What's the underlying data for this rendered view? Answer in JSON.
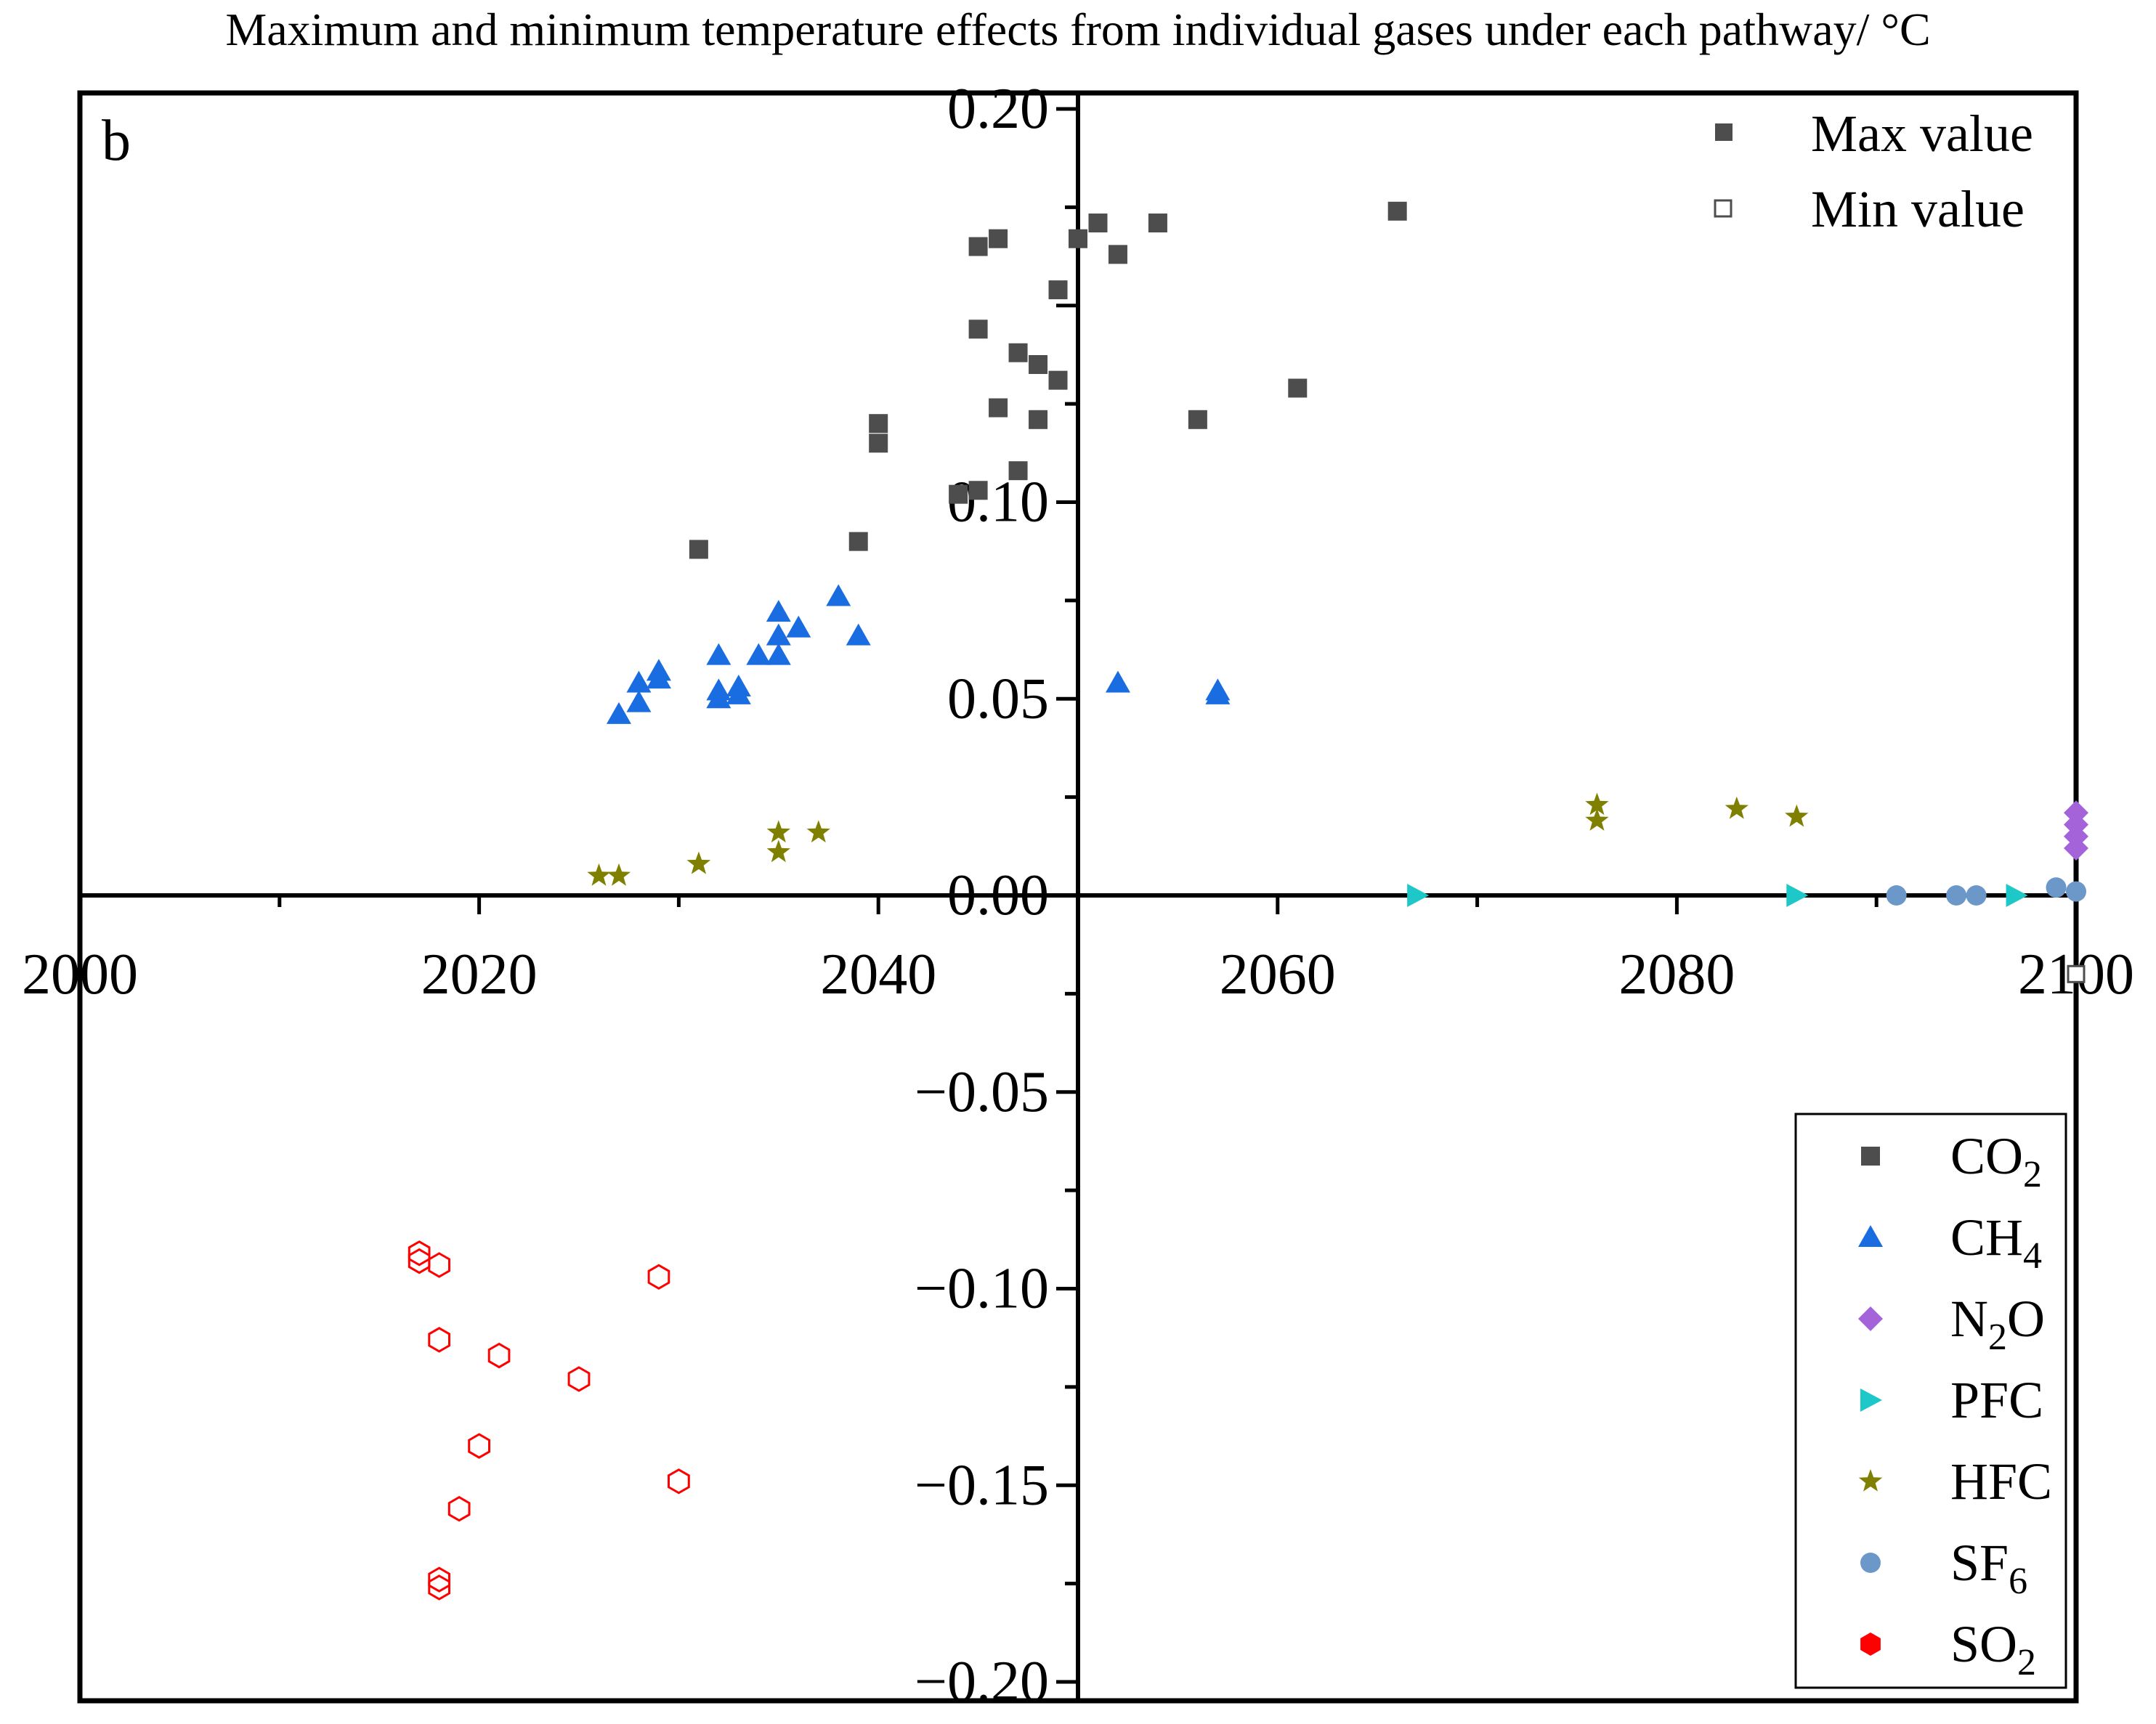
{
  "chart_data": {
    "type": "scatter",
    "title": "Maximum and minimum temperature effects from individual gases under each pathway/ °C",
    "panel_label": "b",
    "xlabel": "",
    "ylabel": "",
    "xlim": [
      2000,
      2100
    ],
    "ylim": [
      -0.2,
      0.2
    ],
    "x_ticks": [
      2000,
      2020,
      2040,
      2060,
      2080,
      2100
    ],
    "x_tick_labels": [
      "2000",
      "2020",
      "2040",
      "2060",
      "2080",
      "2100"
    ],
    "y_ticks": [
      0.2,
      0.1,
      0.05,
      0.0,
      -0.05,
      -0.1,
      -0.15,
      -0.2
    ],
    "y_tick_labels": [
      "0.20",
      "0.10",
      "0.05",
      "0.00",
      "−0.05",
      "−0.10",
      "−0.15",
      "−0.20"
    ],
    "legend_markers": {
      "position": "top-right",
      "entries": [
        {
          "label": "Max value",
          "style": "filled"
        },
        {
          "label": "Min value",
          "style": "open"
        }
      ]
    },
    "legend_gases": {
      "position": "bottom-right",
      "entries": [
        {
          "base": "CO",
          "sub": "2",
          "tail": "",
          "marker": "square",
          "color": "#4d4d4d"
        },
        {
          "base": "CH",
          "sub": "4",
          "tail": "",
          "marker": "triangle",
          "color": "#1a6de0"
        },
        {
          "base": "N",
          "sub": "2",
          "tail": "O",
          "marker": "diamond",
          "color": "#a463d8"
        },
        {
          "base": "PFC",
          "sub": "",
          "tail": "",
          "marker": "right-triangle",
          "color": "#1ec8c8"
        },
        {
          "base": "HFC",
          "sub": "",
          "tail": "",
          "marker": "star",
          "color": "#808000"
        },
        {
          "base": "SF",
          "sub": "6",
          "tail": "",
          "marker": "circle",
          "color": "#6b98c9"
        },
        {
          "base": "SO",
          "sub": "2",
          "tail": "",
          "marker": "hexagon",
          "color": "#ff0000"
        }
      ]
    },
    "series": [
      {
        "name": "CO2",
        "marker": "square",
        "color": "#4d4d4d",
        "style": "filled",
        "x": [
          2031,
          2039,
          2040,
          2040,
          2044,
          2045,
          2045,
          2045,
          2046,
          2046,
          2047,
          2047,
          2048,
          2048,
          2049,
          2049,
          2050,
          2051,
          2052,
          2054,
          2056,
          2061,
          2066
        ],
        "y": [
          0.088,
          0.09,
          0.115,
          0.12,
          0.102,
          0.103,
          0.144,
          0.165,
          0.124,
          0.167,
          0.108,
          0.138,
          0.121,
          0.135,
          0.131,
          0.154,
          0.167,
          0.171,
          0.163,
          0.171,
          0.121,
          0.129,
          0.174
        ]
      },
      {
        "name": "CH4",
        "marker": "triangle",
        "color": "#1a6de0",
        "style": "filled",
        "x": [
          2027,
          2028,
          2028,
          2029,
          2029,
          2032,
          2032,
          2032,
          2033,
          2033,
          2034,
          2035,
          2035,
          2035,
          2036,
          2038,
          2039,
          2052,
          2057,
          2057
        ],
        "y": [
          0.046,
          0.049,
          0.054,
          0.055,
          0.057,
          0.05,
          0.052,
          0.061,
          0.051,
          0.053,
          0.061,
          0.061,
          0.066,
          0.072,
          0.068,
          0.076,
          0.066,
          0.054,
          0.051,
          0.052
        ]
      },
      {
        "name": "N2O",
        "marker": "diamond",
        "color": "#a463d8",
        "style": "filled",
        "x": [
          2100,
          2100,
          2100,
          2100
        ],
        "y": [
          0.012,
          0.015,
          0.018,
          0.021
        ]
      },
      {
        "name": "PFC",
        "marker": "right-triangle",
        "color": "#1ec8c8",
        "style": "filled",
        "x": [
          2067,
          2086,
          2097
        ],
        "y": [
          0.0,
          0.0,
          0.0
        ]
      },
      {
        "name": "HFC",
        "marker": "star",
        "color": "#808000",
        "style": "filled",
        "x": [
          2026,
          2027,
          2031,
          2031,
          2035,
          2035,
          2037,
          2076,
          2076,
          2083,
          2086
        ],
        "y": [
          0.005,
          0.005,
          0.008,
          0.008,
          0.011,
          0.016,
          0.016,
          0.019,
          0.023,
          0.022,
          0.02
        ]
      },
      {
        "name": "SF6",
        "marker": "circle",
        "color": "#6b98c9",
        "style": "filled",
        "x": [
          2091,
          2094,
          2095,
          2099,
          2100
        ],
        "y": [
          0.0,
          0.0,
          0.0,
          0.002,
          0.001
        ]
      },
      {
        "name": "SO2",
        "marker": "hexagon",
        "color": "#ff0000",
        "style": "open",
        "x": [
          2017,
          2017,
          2018,
          2018,
          2018,
          2018,
          2019,
          2020,
          2021,
          2025,
          2029,
          2030
        ],
        "y": [
          -0.091,
          -0.093,
          -0.094,
          -0.113,
          -0.174,
          -0.176,
          -0.156,
          -0.14,
          -0.117,
          -0.123,
          -0.097,
          -0.149
        ]
      },
      {
        "name": "CO2 min",
        "marker": "square",
        "color": "#4d4d4d",
        "style": "open",
        "x": [
          2100
        ],
        "y": [
          -0.02
        ]
      }
    ]
  }
}
